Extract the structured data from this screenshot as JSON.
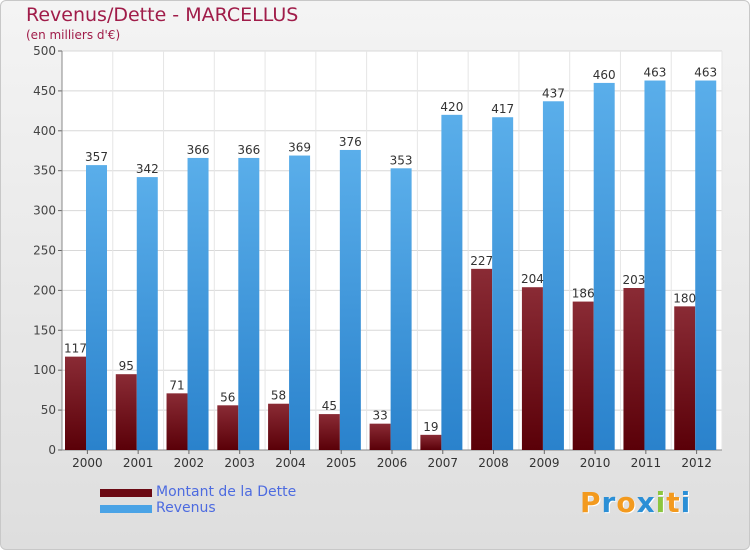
{
  "header": {
    "title": "Revenus/Dette - MARCELLUS",
    "subtitle": "(en milliers d'€)"
  },
  "legend": {
    "items": [
      {
        "label": "Montant de la Dette",
        "color": "#6b0a14"
      },
      {
        "label": "Revenus",
        "color": "#4aa3e6"
      }
    ]
  },
  "logo": {
    "text": "Proxiti",
    "letters": [
      {
        "ch": "P",
        "color": "#f39a1e"
      },
      {
        "ch": "r",
        "color": "#2b8fd6"
      },
      {
        "ch": "o",
        "color": "#f39a1e"
      },
      {
        "ch": "x",
        "color": "#2b8fd6"
      },
      {
        "ch": "i",
        "color": "#8cc63f"
      },
      {
        "ch": "t",
        "color": "#f39a1e"
      },
      {
        "ch": "i",
        "color": "#2b8fd6"
      }
    ]
  },
  "chart_data": {
    "type": "bar",
    "title": "Revenus/Dette - MARCELLUS",
    "subtitle": "(en milliers d'€)",
    "categories": [
      "2000",
      "2001",
      "2002",
      "2003",
      "2004",
      "2005",
      "2006",
      "2007",
      "2008",
      "2009",
      "2010",
      "2011",
      "2012"
    ],
    "series": [
      {
        "name": "Montant de la Dette",
        "color": "#6b0a14",
        "values": [
          117,
          95,
          71,
          56,
          58,
          45,
          33,
          19,
          227,
          204,
          186,
          203,
          180
        ]
      },
      {
        "name": "Revenus",
        "color": "#4aa3e6",
        "values": [
          357,
          342,
          366,
          366,
          369,
          376,
          353,
          420,
          417,
          437,
          460,
          463,
          463
        ]
      }
    ],
    "ylim": [
      0,
      500
    ],
    "yticks": [
      0,
      50,
      100,
      150,
      200,
      250,
      300,
      350,
      400,
      450,
      500
    ],
    "grid": true,
    "legend_position": "bottom-left"
  }
}
